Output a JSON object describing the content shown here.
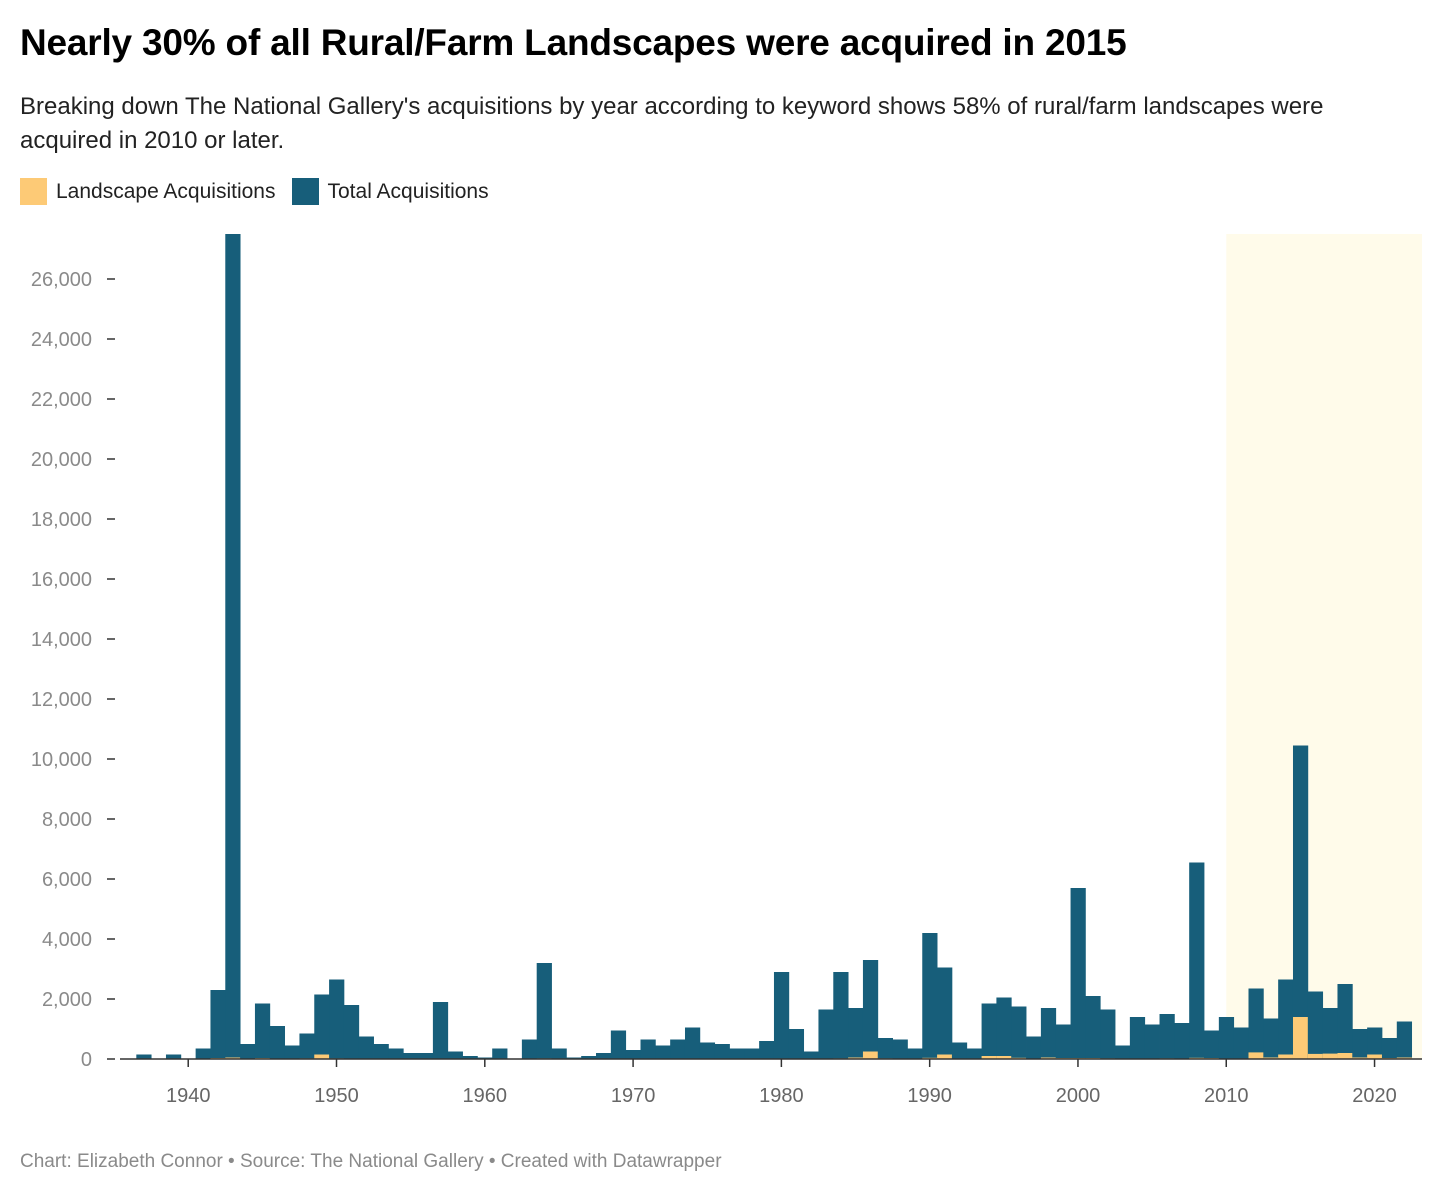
{
  "header": {
    "title": "Nearly 30% of all Rural/Farm Landscapes were acquired in 2015",
    "subtitle": "Breaking down The National Gallery's acquisitions by year according to keyword shows 58% of rural/farm landscapes were acquired in 2010 or later."
  },
  "legend": {
    "items": [
      {
        "label": "Landscape Acquisitions",
        "color": "#fdca76"
      },
      {
        "label": "Total Acquisitions",
        "color": "#175e7a"
      }
    ]
  },
  "footer": {
    "text": "Chart: Elizabeth Connor • Source: The National Gallery • Created with Datawrapper"
  },
  "chart_data": {
    "type": "bar",
    "x": [
      1937,
      1938,
      1939,
      1940,
      1941,
      1942,
      1943,
      1944,
      1945,
      1946,
      1947,
      1948,
      1949,
      1950,
      1951,
      1952,
      1953,
      1954,
      1955,
      1956,
      1957,
      1958,
      1959,
      1960,
      1961,
      1962,
      1963,
      1964,
      1965,
      1966,
      1967,
      1968,
      1969,
      1970,
      1971,
      1972,
      1973,
      1974,
      1975,
      1976,
      1977,
      1978,
      1979,
      1980,
      1981,
      1982,
      1983,
      1984,
      1985,
      1986,
      1987,
      1988,
      1989,
      1990,
      1991,
      1992,
      1993,
      1994,
      1995,
      1996,
      1997,
      1998,
      1999,
      2000,
      2001,
      2002,
      2003,
      2004,
      2005,
      2006,
      2007,
      2008,
      2009,
      2010,
      2011,
      2012,
      2013,
      2014,
      2015,
      2016,
      2017,
      2018,
      2019,
      2020,
      2021,
      2022
    ],
    "series": [
      {
        "name": "Total Acquisitions",
        "color": "#175e7a",
        "values": [
          150,
          0,
          150,
          0,
          350,
          2300,
          27500,
          500,
          1850,
          1100,
          450,
          850,
          2150,
          2650,
          1800,
          750,
          500,
          350,
          200,
          200,
          1900,
          250,
          100,
          50,
          350,
          0,
          650,
          3200,
          350,
          50,
          100,
          200,
          950,
          300,
          650,
          450,
          650,
          1050,
          550,
          500,
          350,
          350,
          600,
          2900,
          1000,
          250,
          1650,
          2900,
          1700,
          3300,
          700,
          650,
          350,
          4200,
          3050,
          550,
          350,
          1850,
          2050,
          1750,
          750,
          1700,
          1150,
          5700,
          2100,
          1650,
          450,
          1400,
          1150,
          1500,
          1200,
          6550,
          950,
          1400,
          1050,
          2350,
          1350,
          2650,
          10450,
          2250,
          1700,
          2500,
          1000,
          1050,
          700,
          1250
        ]
      },
      {
        "name": "Landscape Acquisitions",
        "color": "#fdca76",
        "values": [
          0,
          0,
          0,
          0,
          0,
          30,
          50,
          0,
          30,
          0,
          0,
          20,
          150,
          20,
          0,
          0,
          0,
          0,
          0,
          0,
          10,
          0,
          0,
          0,
          0,
          0,
          0,
          20,
          0,
          0,
          0,
          0,
          10,
          0,
          0,
          0,
          0,
          10,
          0,
          0,
          0,
          0,
          0,
          10,
          0,
          0,
          10,
          20,
          50,
          250,
          20,
          0,
          10,
          40,
          150,
          0,
          10,
          100,
          100,
          40,
          0,
          50,
          30,
          30,
          30,
          20,
          10,
          10,
          0,
          20,
          10,
          40,
          30,
          0,
          10,
          220,
          50,
          150,
          1400,
          170,
          180,
          200,
          50,
          150,
          30,
          50
        ]
      }
    ],
    "xlabel": "",
    "ylabel": "",
    "xlim": [
      1935.4,
      2023.2
    ],
    "ylim": [
      0,
      27500
    ],
    "x_ticks": [
      1940,
      1950,
      1960,
      1970,
      1980,
      1990,
      2000,
      2010,
      2020
    ],
    "y_ticks": [
      0,
      2000,
      4000,
      6000,
      8000,
      10000,
      12000,
      14000,
      16000,
      18000,
      20000,
      22000,
      24000,
      26000
    ],
    "y_tick_labels": [
      "0",
      "2,000",
      "4,000",
      "6,000",
      "8,000",
      "10,000",
      "12,000",
      "14,000",
      "16,000",
      "18,000",
      "20,000",
      "22,000",
      "24,000",
      "26,000"
    ],
    "highlight_range": [
      2010,
      2023.2
    ],
    "highlight_color": "#fffbea",
    "grid": false,
    "legend_position": "top-left"
  }
}
